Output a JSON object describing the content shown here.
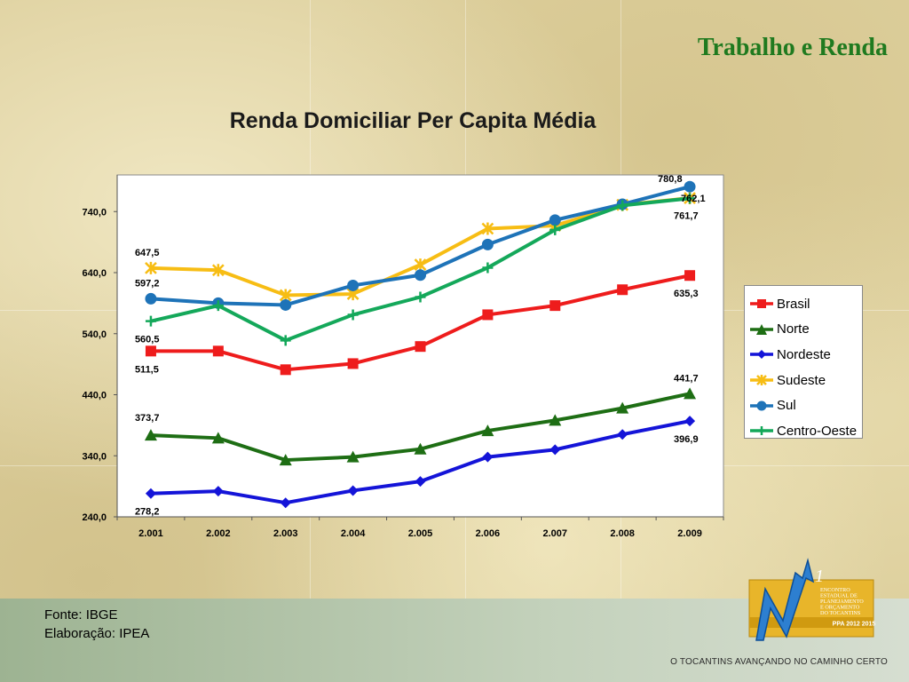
{
  "slide": {
    "title": "Trabalho e Renda",
    "source": "Fonte: IBGE",
    "elaboration": "Elaboração: IPEA",
    "slogan": "O TOCANTINS AVANÇANDO NO CAMINHO CERTO"
  },
  "logo": {
    "lines": [
      "ENCONTRO",
      "ESTADUAL DE",
      "PLANEJAMENTO",
      "E ORÇAMENTO",
      "DO TOCANTINS"
    ],
    "banner": "PPA 2012 2015",
    "ordinal": "1"
  },
  "chart_data": {
    "type": "line",
    "title": "Renda Domiciliar Per Capita Média",
    "xlabel": "",
    "ylabel": "",
    "categories": [
      "2.001",
      "2.002",
      "2.003",
      "2.004",
      "2.005",
      "2.006",
      "2.007",
      "2.008",
      "2.009"
    ],
    "ylim": [
      240,
      800
    ],
    "yticks": [
      240,
      340,
      440,
      540,
      640,
      740
    ],
    "ytick_labels": [
      "240,0",
      "340,0",
      "440,0",
      "540,0",
      "640,0",
      "740,0"
    ],
    "grid": false,
    "legend_position": "right",
    "series": [
      {
        "name": "Brasil",
        "color": "#ee1c1c",
        "marker": "square",
        "values": [
          511.5,
          511.5,
          481,
          491,
          519,
          571,
          586,
          612,
          635.3
        ]
      },
      {
        "name": "Norte",
        "color": "#1e6e14",
        "marker": "triangle",
        "values": [
          373.7,
          369,
          333,
          338,
          351,
          381,
          398,
          418,
          441.7
        ]
      },
      {
        "name": "Nordeste",
        "color": "#1414d8",
        "marker": "diamond",
        "values": [
          278.2,
          282,
          263,
          283,
          298,
          338,
          350,
          375,
          396.9
        ]
      },
      {
        "name": "Sudeste",
        "color": "#f7bd14",
        "marker": "star",
        "values": [
          647.5,
          644,
          603,
          605,
          653,
          712,
          717,
          751,
          762.1
        ]
      },
      {
        "name": "Sul",
        "color": "#1e73b8",
        "marker": "circle",
        "values": [
          597.2,
          590,
          587,
          619,
          636,
          686,
          726,
          752,
          780.8
        ]
      },
      {
        "name": "Centro-Oeste",
        "color": "#14a85a",
        "marker": "plus",
        "values": [
          560.5,
          586,
          529,
          571,
          600,
          648,
          710,
          750,
          761.7
        ]
      }
    ],
    "annotations": [
      {
        "series": "Sudeste",
        "index": 0,
        "text": "647,5"
      },
      {
        "series": "Sul",
        "index": 0,
        "text": "597,2"
      },
      {
        "series": "Centro-Oeste",
        "index": 0,
        "text": "560,5"
      },
      {
        "series": "Brasil",
        "index": 0,
        "text": "511,5"
      },
      {
        "series": "Norte",
        "index": 0,
        "text": "373,7"
      },
      {
        "series": "Nordeste",
        "index": 0,
        "text": "278,2"
      },
      {
        "series": "Sul",
        "index": 8,
        "text": "780,8"
      },
      {
        "series": "Sudeste",
        "index": 8,
        "text": "762,1"
      },
      {
        "series": "Centro-Oeste",
        "index": 8,
        "text": "761,7"
      },
      {
        "series": "Brasil",
        "index": 8,
        "text": "635,3"
      },
      {
        "series": "Norte",
        "index": 8,
        "text": "441,7"
      },
      {
        "series": "Nordeste",
        "index": 8,
        "text": "396,9"
      }
    ]
  }
}
